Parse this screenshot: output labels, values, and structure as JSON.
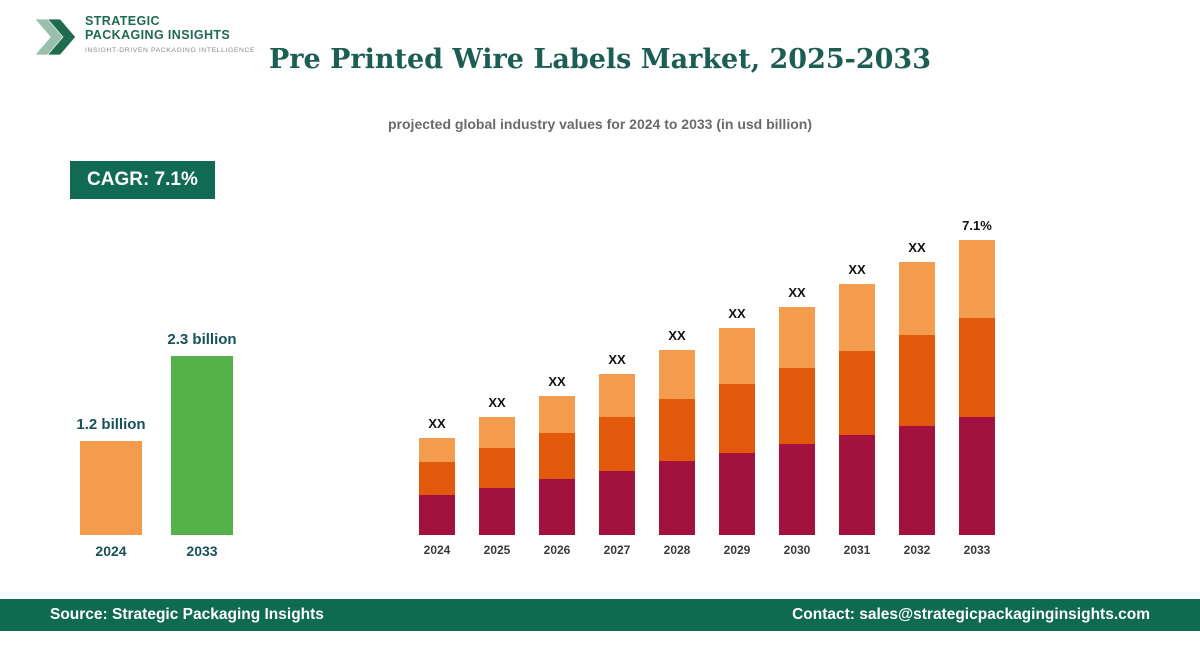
{
  "logo": {
    "line1": "STRATEGIC",
    "line2": "PACKAGING INSIGHTS",
    "tagline": "INSIGHT-DRIVEN PACKAGING INTELLIGENCE"
  },
  "header": {
    "title": "Pre Printed Wire Labels Market, 2025-2033",
    "subtitle": "projected global industry values for 2024 to 2033 (in usd billion)"
  },
  "cagr_badge": "CAGR: 7.1%",
  "footer": {
    "source": "Source: Strategic Packaging Insights",
    "contact": "Contact: sales@strategicpackaginginsights.com"
  },
  "colors": {
    "brand_green": "#116A54",
    "footer_green": "#0E6B50",
    "title_green": "#1C5E54",
    "maroon": "#A3123E",
    "dark_orange": "#E2590C",
    "light_orange": "#F49C4D",
    "summary_green": "#55B24B"
  },
  "chart_data": [
    {
      "type": "bar",
      "name": "summary-growth",
      "title": "",
      "categories": [
        "2024",
        "2033"
      ],
      "values": [
        1.2,
        2.3
      ],
      "labels": [
        "1.2 billion",
        "2.3 billion"
      ],
      "colors": [
        "#F49C4D",
        "#55B24B"
      ],
      "ylabel": "usd billion",
      "legend": "none",
      "grid": false
    },
    {
      "type": "bar",
      "subtype": "stacked",
      "name": "projection-2024-2033",
      "title": "",
      "categories": [
        "2024",
        "2025",
        "2026",
        "2027",
        "2028",
        "2029",
        "2030",
        "2031",
        "2032",
        "2033"
      ],
      "series": [
        {
          "name": "segment-bottom",
          "color": "#A3123E",
          "values": [
            40,
            47,
            56,
            64,
            74,
            82,
            91,
            100,
            109,
            118
          ]
        },
        {
          "name": "segment-middle",
          "color": "#E2590C",
          "values": [
            33,
            40,
            46,
            54,
            62,
            69,
            76,
            84,
            91,
            99
          ]
        },
        {
          "name": "segment-top",
          "color": "#F49C4D",
          "values": [
            24,
            31,
            37,
            43,
            49,
            56,
            61,
            67,
            73,
            78
          ]
        }
      ],
      "bar_labels": [
        "XX",
        "XX",
        "XX",
        "XX",
        "XX",
        "XX",
        "XX",
        "XX",
        "XX",
        "7.1%"
      ],
      "units": "relative height (actual values masked as XX)",
      "cagr": "7.1%",
      "legend": "none",
      "grid": false
    }
  ]
}
